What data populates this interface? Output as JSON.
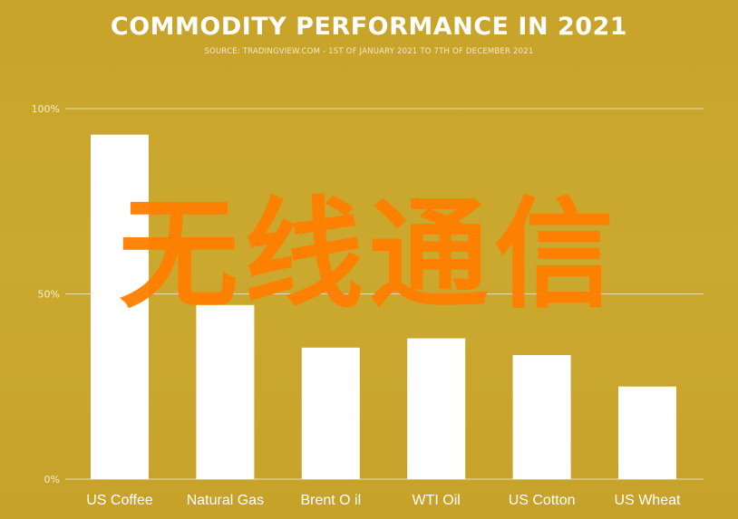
{
  "chart_data": {
    "type": "bar",
    "title": "COMMODITY PERFORMANCE IN 2021",
    "subtitle": "SOURCE: TRADINGVIEW.COM - 1ST OF JANUARY 2021 TO 7TH OF DECEMBER 2021",
    "categories": [
      "US Coffee",
      "Natural Gas",
      "Brent O il",
      "WTI Oil",
      "US Cotton",
      "US Wheat"
    ],
    "values": [
      93,
      47,
      35.5,
      38,
      33.5,
      25
    ],
    "ylim": [
      0,
      100
    ],
    "yticks": [
      0,
      50,
      100
    ],
    "ytick_labels": [
      "0%",
      "50%",
      "100%"
    ],
    "grid": true,
    "colors": {
      "background": "#c9a52c",
      "bar": "#ffffff",
      "grid": "#f3e6b8"
    }
  },
  "watermark_text": "无线通信"
}
